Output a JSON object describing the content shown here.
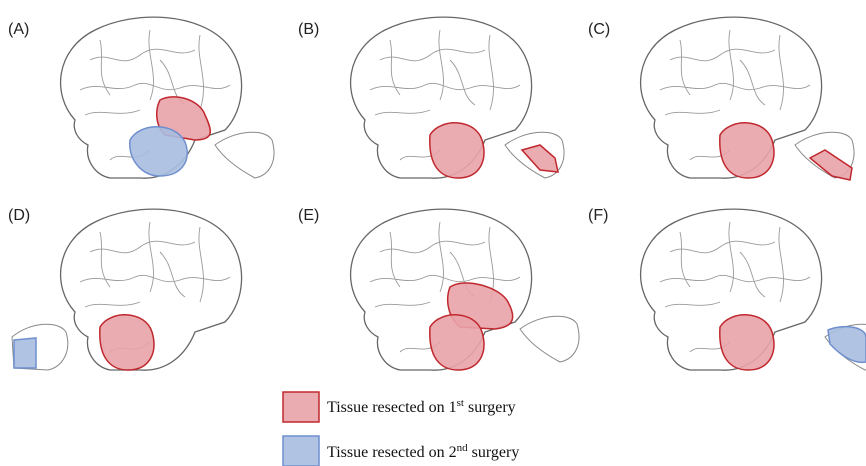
{
  "panels": [
    {
      "label": "(A)"
    },
    {
      "label": "(B)"
    },
    {
      "label": "(C)"
    },
    {
      "label": "(D)"
    },
    {
      "label": "(E)"
    },
    {
      "label": "(F)"
    }
  ],
  "legend": [
    {
      "prefix": "Tissue resected on 1",
      "sup": "st",
      "suffix": " surgery"
    },
    {
      "prefix": "Tissue resected on 2",
      "sup": "nd",
      "suffix": " surgery"
    }
  ]
}
